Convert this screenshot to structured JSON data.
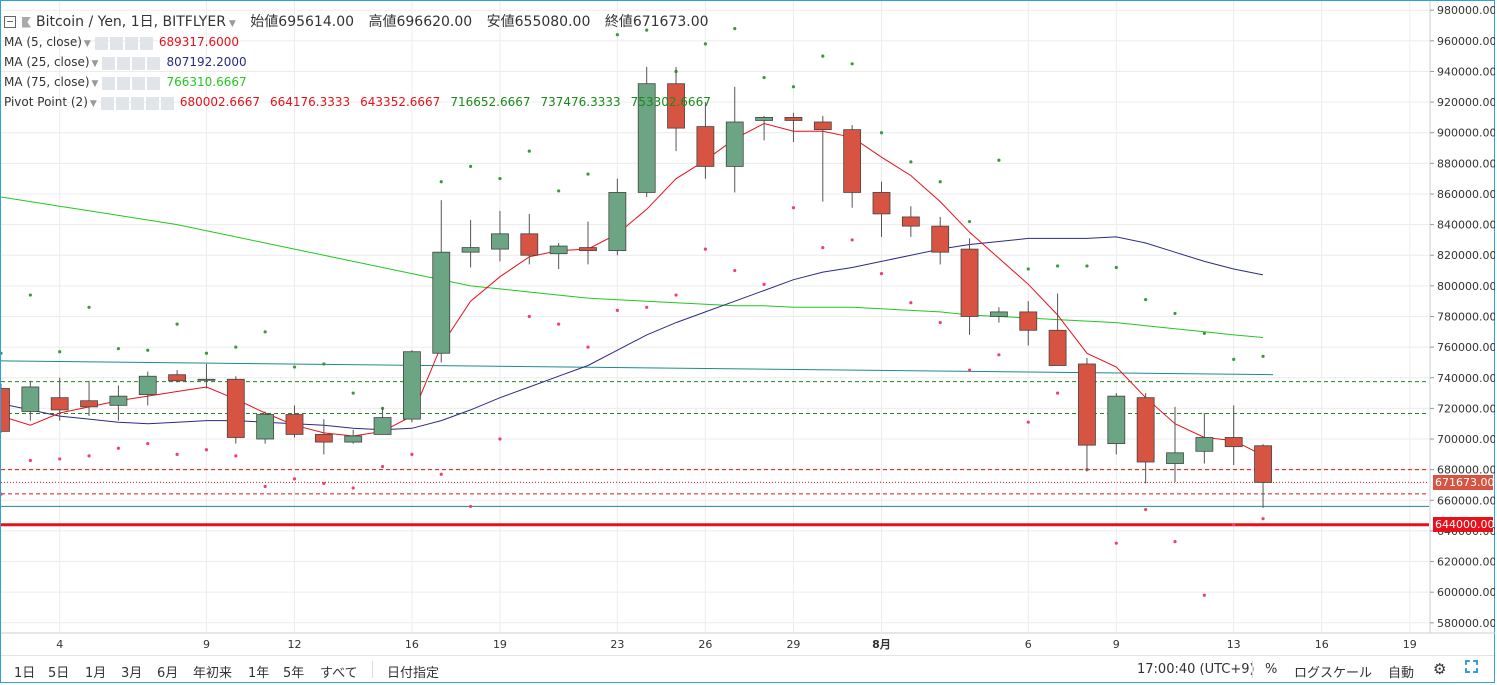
{
  "header": {
    "symbol": "Bitcoin / Yen, 1日, BITFLYER",
    "open_label": "始値",
    "open_value": "695614.00",
    "high_label": "高値",
    "high_value": "696620.00",
    "low_label": "安値",
    "low_value": "655080.00",
    "close_label": "終値",
    "close_value": "671673.00"
  },
  "legend": [
    {
      "name": "MA (5, close)",
      "values": [
        "689317.6000"
      ],
      "colors": [
        "#e8101a"
      ]
    },
    {
      "name": "MA (25, close)",
      "values": [
        "807192.2000"
      ],
      "colors": [
        "#2b2a86"
      ]
    },
    {
      "name": "MA (75, close)",
      "values": [
        "766310.6667"
      ],
      "colors": [
        "#22c81f"
      ]
    },
    {
      "name": "Pivot Point (2)",
      "values": [
        "680002.6667",
        "664176.3333",
        "643352.6667",
        "716652.6667",
        "737476.3333",
        "753302.6667"
      ],
      "colors": [
        "#e8101a",
        "#e8101a",
        "#e8101a",
        "#1a8a1a",
        "#1a8a1a",
        "#1a8a1a"
      ]
    }
  ],
  "price_tags": {
    "last": "671673.00",
    "line": "644000.00"
  },
  "bottom": {
    "ranges": [
      "1日",
      "5日",
      "1月",
      "3月",
      "6月",
      "年初来",
      "1年",
      "5年",
      "すべて"
    ],
    "goto_date": "日付指定",
    "time": "17:00:40 (UTC+9)",
    "percent": "%",
    "log_scale": "ログスケール",
    "auto": "自動"
  },
  "chart_data": {
    "type": "candlestick",
    "colors": {
      "up": "#6ba583",
      "down": "#d75442",
      "ma5": "#e8101a",
      "ma25": "#2b2a86",
      "ma75": "#22c81f",
      "pivot_support": "#f0406c",
      "pivot_resistance": "#3a9a3a",
      "grid": "#ececec"
    },
    "ylim": [
      574000,
      986000
    ],
    "y_ticks": [
      580000,
      600000,
      620000,
      640000,
      660000,
      680000,
      700000,
      720000,
      740000,
      760000,
      780000,
      800000,
      820000,
      840000,
      860000,
      880000,
      900000,
      920000,
      940000,
      960000,
      980000
    ],
    "x_ticks": [
      {
        "i": 2,
        "label": "4"
      },
      {
        "i": 7,
        "label": "9"
      },
      {
        "i": 10,
        "label": "12"
      },
      {
        "i": 14,
        "label": "16"
      },
      {
        "i": 17,
        "label": "19"
      },
      {
        "i": 21,
        "label": "23"
      },
      {
        "i": 24,
        "label": "26"
      },
      {
        "i": 27,
        "label": "29"
      },
      {
        "i": 30,
        "label": "8月"
      },
      {
        "i": 35,
        "label": "6"
      },
      {
        "i": 38,
        "label": "9"
      },
      {
        "i": 42,
        "label": "13"
      },
      {
        "i": 45,
        "label": "16"
      },
      {
        "i": 48,
        "label": "19"
      }
    ],
    "candles": [
      {
        "o": 733000,
        "h": 736000,
        "l": 704000,
        "c": 705000
      },
      {
        "o": 718000,
        "h": 738000,
        "l": 712000,
        "c": 734000
      },
      {
        "o": 727000,
        "h": 740000,
        "l": 712000,
        "c": 719000
      },
      {
        "o": 725000,
        "h": 738000,
        "l": 715000,
        "c": 721000
      },
      {
        "o": 722000,
        "h": 735000,
        "l": 712000,
        "c": 728000
      },
      {
        "o": 729000,
        "h": 744000,
        "l": 722000,
        "c": 741000
      },
      {
        "o": 742000,
        "h": 745000,
        "l": 737000,
        "c": 738000
      },
      {
        "o": 739000,
        "h": 749000,
        "l": 733000,
        "c": 739000
      },
      {
        "o": 739000,
        "h": 741000,
        "l": 697000,
        "c": 701000
      },
      {
        "o": 700000,
        "h": 718000,
        "l": 697000,
        "c": 716000
      },
      {
        "o": 716000,
        "h": 722000,
        "l": 701000,
        "c": 703000
      },
      {
        "o": 703000,
        "h": 713000,
        "l": 690000,
        "c": 698000
      },
      {
        "o": 698000,
        "h": 706000,
        "l": 697000,
        "c": 702000
      },
      {
        "o": 703000,
        "h": 720000,
        "l": 703000,
        "c": 714000
      },
      {
        "o": 713000,
        "h": 758000,
        "l": 711000,
        "c": 757000
      },
      {
        "o": 756000,
        "h": 856000,
        "l": 750000,
        "c": 822000
      },
      {
        "o": 822000,
        "h": 843000,
        "l": 812000,
        "c": 825000
      },
      {
        "o": 824000,
        "h": 849000,
        "l": 816000,
        "c": 834000
      },
      {
        "o": 834000,
        "h": 847000,
        "l": 814000,
        "c": 820000
      },
      {
        "o": 821000,
        "h": 828000,
        "l": 811000,
        "c": 826000
      },
      {
        "o": 825000,
        "h": 842000,
        "l": 814000,
        "c": 823000
      },
      {
        "o": 823000,
        "h": 870000,
        "l": 820000,
        "c": 861000
      },
      {
        "o": 861000,
        "h": 943000,
        "l": 858000,
        "c": 932000
      },
      {
        "o": 932000,
        "h": 943000,
        "l": 888000,
        "c": 903000
      },
      {
        "o": 904000,
        "h": 920000,
        "l": 870000,
        "c": 878000
      },
      {
        "o": 878000,
        "h": 930000,
        "l": 861000,
        "c": 907000
      },
      {
        "o": 908000,
        "h": 911000,
        "l": 895000,
        "c": 910000
      },
      {
        "o": 910000,
        "h": 913000,
        "l": 894000,
        "c": 908000
      },
      {
        "o": 907000,
        "h": 911000,
        "l": 855000,
        "c": 902000
      },
      {
        "o": 902000,
        "h": 905000,
        "l": 851000,
        "c": 861000
      },
      {
        "o": 861000,
        "h": 868000,
        "l": 832000,
        "c": 847000
      },
      {
        "o": 845000,
        "h": 852000,
        "l": 832000,
        "c": 839000
      },
      {
        "o": 839000,
        "h": 845000,
        "l": 814000,
        "c": 822000
      },
      {
        "o": 824000,
        "h": 831000,
        "l": 768000,
        "c": 780000
      },
      {
        "o": 780000,
        "h": 786000,
        "l": 776000,
        "c": 783000
      },
      {
        "o": 783000,
        "h": 790000,
        "l": 761000,
        "c": 771000
      },
      {
        "o": 771000,
        "h": 795000,
        "l": 748000,
        "c": 748000
      },
      {
        "o": 749000,
        "h": 753000,
        "l": 679000,
        "c": 696000
      },
      {
        "o": 697000,
        "h": 730000,
        "l": 690000,
        "c": 728000
      },
      {
        "o": 727000,
        "h": 730000,
        "l": 671000,
        "c": 685000
      },
      {
        "o": 684000,
        "h": 721000,
        "l": 672000,
        "c": 691000
      },
      {
        "o": 692000,
        "h": 717000,
        "l": 684000,
        "c": 701000
      },
      {
        "o": 701000,
        "h": 722000,
        "l": 683000,
        "c": 695000
      },
      {
        "o": 695614,
        "h": 696620,
        "l": 655080,
        "c": 671673
      }
    ],
    "ma5": [
      [
        0,
        715000
      ],
      [
        1,
        709000
      ],
      [
        2,
        717000
      ],
      [
        3,
        721000
      ],
      [
        4,
        725000
      ],
      [
        5,
        728000
      ],
      [
        6,
        731000
      ],
      [
        7,
        734000
      ],
      [
        8,
        726000
      ],
      [
        9,
        717000
      ],
      [
        10,
        709000
      ],
      [
        11,
        704000
      ],
      [
        12,
        702000
      ],
      [
        13,
        705000
      ],
      [
        14,
        715000
      ],
      [
        15,
        761000
      ],
      [
        16,
        790000
      ],
      [
        17,
        806000
      ],
      [
        18,
        819000
      ],
      [
        19,
        823000
      ],
      [
        20,
        824000
      ],
      [
        21,
        834000
      ],
      [
        22,
        850000
      ],
      [
        23,
        870000
      ],
      [
        24,
        882000
      ],
      [
        25,
        896000
      ],
      [
        26,
        906000
      ],
      [
        27,
        901000
      ],
      [
        28,
        901000
      ],
      [
        29,
        897000
      ],
      [
        30,
        884000
      ],
      [
        31,
        872000
      ],
      [
        32,
        855000
      ],
      [
        33,
        835000
      ],
      [
        34,
        818000
      ],
      [
        35,
        801000
      ],
      [
        36,
        781000
      ],
      [
        37,
        756000
      ],
      [
        38,
        747000
      ],
      [
        39,
        727000
      ],
      [
        40,
        710000
      ],
      [
        41,
        701000
      ],
      [
        42,
        699000
      ],
      [
        43,
        689318
      ]
    ],
    "ma25": [
      [
        0,
        723000
      ],
      [
        1,
        719000
      ],
      [
        2,
        715000
      ],
      [
        3,
        713000
      ],
      [
        4,
        711000
      ],
      [
        5,
        710000
      ],
      [
        6,
        711000
      ],
      [
        7,
        712000
      ],
      [
        8,
        712000
      ],
      [
        9,
        711000
      ],
      [
        10,
        710000
      ],
      [
        11,
        709000
      ],
      [
        12,
        707000
      ],
      [
        13,
        706000
      ],
      [
        14,
        707000
      ],
      [
        15,
        712000
      ],
      [
        16,
        719000
      ],
      [
        17,
        727000
      ],
      [
        18,
        734000
      ],
      [
        19,
        741000
      ],
      [
        20,
        748000
      ],
      [
        21,
        758000
      ],
      [
        22,
        768000
      ],
      [
        23,
        776000
      ],
      [
        24,
        783000
      ],
      [
        25,
        790000
      ],
      [
        26,
        797000
      ],
      [
        27,
        804000
      ],
      [
        28,
        809000
      ],
      [
        29,
        812000
      ],
      [
        30,
        816000
      ],
      [
        31,
        820000
      ],
      [
        32,
        824000
      ],
      [
        33,
        827000
      ],
      [
        34,
        829000
      ],
      [
        35,
        831000
      ],
      [
        36,
        831000
      ],
      [
        37,
        831000
      ],
      [
        38,
        832000
      ],
      [
        39,
        828000
      ],
      [
        40,
        822000
      ],
      [
        41,
        816000
      ],
      [
        42,
        811000
      ],
      [
        43,
        807192
      ]
    ],
    "ma75": [
      [
        0,
        858000
      ],
      [
        1,
        855000
      ],
      [
        2,
        852000
      ],
      [
        3,
        849000
      ],
      [
        4,
        846000
      ],
      [
        5,
        843000
      ],
      [
        6,
        840000
      ],
      [
        7,
        836000
      ],
      [
        8,
        832000
      ],
      [
        9,
        828000
      ],
      [
        10,
        824000
      ],
      [
        11,
        820000
      ],
      [
        12,
        816000
      ],
      [
        13,
        812000
      ],
      [
        14,
        808000
      ],
      [
        15,
        804000
      ],
      [
        16,
        800000
      ],
      [
        17,
        798000
      ],
      [
        18,
        796000
      ],
      [
        19,
        794000
      ],
      [
        20,
        792000
      ],
      [
        21,
        791000
      ],
      [
        22,
        790000
      ],
      [
        23,
        789000
      ],
      [
        24,
        788000
      ],
      [
        25,
        787000
      ],
      [
        26,
        787000
      ],
      [
        27,
        786000
      ],
      [
        28,
        786000
      ],
      [
        29,
        786000
      ],
      [
        30,
        785000
      ],
      [
        31,
        784000
      ],
      [
        32,
        783000
      ],
      [
        33,
        781000
      ],
      [
        34,
        780000
      ],
      [
        35,
        779000
      ],
      [
        36,
        778000
      ],
      [
        37,
        777000
      ],
      [
        38,
        776000
      ],
      [
        39,
        774000
      ],
      [
        40,
        772000
      ],
      [
        41,
        770000
      ],
      [
        42,
        768000
      ],
      [
        43,
        766311
      ]
    ],
    "reference_line": {
      "from": 751000,
      "to": 742000,
      "color": "#1e8a8a"
    },
    "horizontal_lines": [
      {
        "y": 737476,
        "color": "#1a8a1a",
        "style": "dashed"
      },
      {
        "y": 716653,
        "color": "#1a8a1a",
        "style": "dashed"
      },
      {
        "y": 680003,
        "color": "#e8101a",
        "style": "dashed"
      },
      {
        "y": 671673,
        "color": "#e8101a",
        "style": "dotted"
      },
      {
        "y": 664176,
        "color": "#e8101a",
        "style": "dashed"
      },
      {
        "y": 656000,
        "color": "#1e8a8a",
        "style": "solid"
      },
      {
        "y": 644000,
        "color": "#e8101a",
        "style": "solid-thick"
      }
    ],
    "pivot_dots_resistance": [
      [
        0,
        756000
      ],
      [
        1,
        794000
      ],
      [
        2,
        757000
      ],
      [
        3,
        786000
      ],
      [
        4,
        759000
      ],
      [
        5,
        758000
      ],
      [
        6,
        775000
      ],
      [
        7,
        756000
      ],
      [
        8,
        760000
      ],
      [
        9,
        770000
      ],
      [
        10,
        747000
      ],
      [
        11,
        749000
      ],
      [
        12,
        730000
      ],
      [
        13,
        720000
      ],
      [
        14,
        756000
      ],
      [
        15,
        868000
      ],
      [
        16,
        878000
      ],
      [
        17,
        870000
      ],
      [
        18,
        888000
      ],
      [
        19,
        862000
      ],
      [
        20,
        873000
      ],
      [
        21,
        964000
      ],
      [
        22,
        967000
      ],
      [
        23,
        940000
      ],
      [
        24,
        958000
      ],
      [
        25,
        968000
      ],
      [
        26,
        936000
      ],
      [
        27,
        930000
      ],
      [
        28,
        950000
      ],
      [
        29,
        945000
      ],
      [
        30,
        900000
      ],
      [
        31,
        881000
      ],
      [
        32,
        868000
      ],
      [
        33,
        842000
      ],
      [
        34,
        882000
      ],
      [
        35,
        811000
      ],
      [
        36,
        813000
      ],
      [
        37,
        813000
      ],
      [
        38,
        812000
      ],
      [
        39,
        791000
      ],
      [
        40,
        782000
      ],
      [
        41,
        769000
      ],
      [
        42,
        752000
      ],
      [
        43,
        754000
      ]
    ],
    "pivot_dots_support": [
      [
        0,
        664000
      ],
      [
        1,
        686000
      ],
      [
        2,
        687000
      ],
      [
        3,
        689000
      ],
      [
        4,
        694000
      ],
      [
        5,
        697000
      ],
      [
        6,
        690000
      ],
      [
        7,
        693000
      ],
      [
        8,
        689000
      ],
      [
        9,
        669000
      ],
      [
        10,
        674000
      ],
      [
        11,
        671000
      ],
      [
        12,
        668000
      ],
      [
        13,
        682000
      ],
      [
        14,
        690000
      ],
      [
        15,
        677000
      ],
      [
        16,
        656000
      ],
      [
        17,
        700000
      ],
      [
        18,
        780000
      ],
      [
        19,
        775000
      ],
      [
        20,
        760000
      ],
      [
        21,
        784000
      ],
      [
        22,
        786000
      ],
      [
        23,
        794000
      ],
      [
        24,
        824000
      ],
      [
        25,
        810000
      ],
      [
        26,
        801000
      ],
      [
        27,
        851000
      ],
      [
        28,
        825000
      ],
      [
        29,
        830000
      ],
      [
        30,
        808000
      ],
      [
        31,
        789000
      ],
      [
        32,
        776000
      ],
      [
        33,
        745000
      ],
      [
        34,
        755000
      ],
      [
        35,
        711000
      ],
      [
        36,
        730000
      ],
      [
        37,
        680000
      ],
      [
        38,
        632000
      ],
      [
        39,
        654000
      ],
      [
        40,
        633000
      ],
      [
        41,
        598000
      ],
      [
        42,
        644000
      ],
      [
        43,
        648000
      ]
    ]
  }
}
